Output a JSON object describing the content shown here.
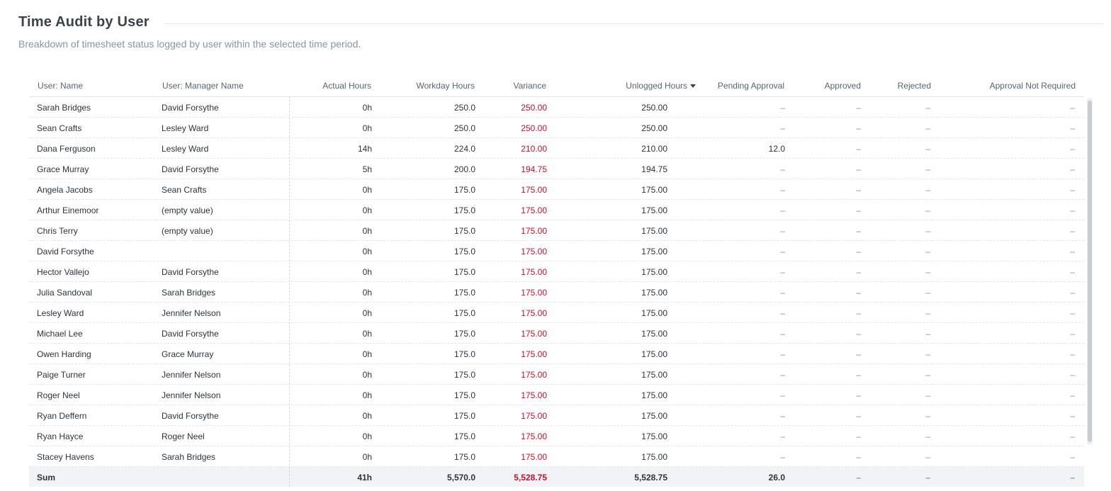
{
  "title": "Time Audit by User",
  "subtitle": "Breakdown of timesheet status logged by user within the selected time period.",
  "columns": {
    "name": "User: Name",
    "manager": "User: Manager Name",
    "actual": "Actual Hours",
    "workday": "Workday Hours",
    "variance": "Variance",
    "unlogged": "Unlogged Hours",
    "pending": "Pending Approval",
    "approved": "Approved",
    "rejected": "Rejected",
    "not_required": "Approval Not Required"
  },
  "sort": {
    "column": "unlogged",
    "direction": "desc",
    "icon": "sort-desc-icon"
  },
  "colors": {
    "variance": "#c8102e"
  },
  "rows": [
    {
      "name": "Sarah Bridges",
      "manager": "David Forsythe",
      "actual": "0h",
      "workday": "250.0",
      "variance": "250.00",
      "unlogged": "250.00",
      "pending": "–",
      "approved": "–",
      "rejected": "–",
      "not_required": "–"
    },
    {
      "name": "Sean Crafts",
      "manager": "Lesley Ward",
      "actual": "0h",
      "workday": "250.0",
      "variance": "250.00",
      "unlogged": "250.00",
      "pending": "–",
      "approved": "–",
      "rejected": "–",
      "not_required": "–"
    },
    {
      "name": "Dana Ferguson",
      "manager": "Lesley Ward",
      "actual": "14h",
      "workday": "224.0",
      "variance": "210.00",
      "unlogged": "210.00",
      "pending": "12.0",
      "approved": "–",
      "rejected": "–",
      "not_required": "–"
    },
    {
      "name": "Grace Murray",
      "manager": "David Forsythe",
      "actual": "5h",
      "workday": "200.0",
      "variance": "194.75",
      "unlogged": "194.75",
      "pending": "–",
      "approved": "–",
      "rejected": "–",
      "not_required": "–"
    },
    {
      "name": "Angela Jacobs",
      "manager": "Sean Crafts",
      "actual": "0h",
      "workday": "175.0",
      "variance": "175.00",
      "unlogged": "175.00",
      "pending": "–",
      "approved": "–",
      "rejected": "–",
      "not_required": "–"
    },
    {
      "name": "Arthur Einemoor",
      "manager": "(empty value)",
      "actual": "0h",
      "workday": "175.0",
      "variance": "175.00",
      "unlogged": "175.00",
      "pending": "–",
      "approved": "–",
      "rejected": "–",
      "not_required": "–"
    },
    {
      "name": "Chris Terry",
      "manager": "(empty value)",
      "actual": "0h",
      "workday": "175.0",
      "variance": "175.00",
      "unlogged": "175.00",
      "pending": "–",
      "approved": "–",
      "rejected": "–",
      "not_required": "–"
    },
    {
      "name": "David Forsythe",
      "manager": "",
      "actual": "0h",
      "workday": "175.0",
      "variance": "175.00",
      "unlogged": "175.00",
      "pending": "–",
      "approved": "–",
      "rejected": "–",
      "not_required": "–"
    },
    {
      "name": "Hector Vallejo",
      "manager": "David Forsythe",
      "actual": "0h",
      "workday": "175.0",
      "variance": "175.00",
      "unlogged": "175.00",
      "pending": "–",
      "approved": "–",
      "rejected": "–",
      "not_required": "–"
    },
    {
      "name": "Julia Sandoval",
      "manager": "Sarah Bridges",
      "actual": "0h",
      "workday": "175.0",
      "variance": "175.00",
      "unlogged": "175.00",
      "pending": "–",
      "approved": "–",
      "rejected": "–",
      "not_required": "–"
    },
    {
      "name": "Lesley Ward",
      "manager": "Jennifer Nelson",
      "actual": "0h",
      "workday": "175.0",
      "variance": "175.00",
      "unlogged": "175.00",
      "pending": "–",
      "approved": "–",
      "rejected": "–",
      "not_required": "–"
    },
    {
      "name": "Michael Lee",
      "manager": "David Forsythe",
      "actual": "0h",
      "workday": "175.0",
      "variance": "175.00",
      "unlogged": "175.00",
      "pending": "–",
      "approved": "–",
      "rejected": "–",
      "not_required": "–"
    },
    {
      "name": "Owen Harding",
      "manager": "Grace Murray",
      "actual": "0h",
      "workday": "175.0",
      "variance": "175.00",
      "unlogged": "175.00",
      "pending": "–",
      "approved": "–",
      "rejected": "–",
      "not_required": "–"
    },
    {
      "name": "Paige Turner",
      "manager": "Jennifer Nelson",
      "actual": "0h",
      "workday": "175.0",
      "variance": "175.00",
      "unlogged": "175.00",
      "pending": "–",
      "approved": "–",
      "rejected": "–",
      "not_required": "–"
    },
    {
      "name": "Roger Neel",
      "manager": "Jennifer Nelson",
      "actual": "0h",
      "workday": "175.0",
      "variance": "175.00",
      "unlogged": "175.00",
      "pending": "–",
      "approved": "–",
      "rejected": "–",
      "not_required": "–"
    },
    {
      "name": "Ryan Deffern",
      "manager": "David Forsythe",
      "actual": "0h",
      "workday": "175.0",
      "variance": "175.00",
      "unlogged": "175.00",
      "pending": "–",
      "approved": "–",
      "rejected": "–",
      "not_required": "–"
    },
    {
      "name": "Ryan Hayce",
      "manager": "Roger Neel",
      "actual": "0h",
      "workday": "175.0",
      "variance": "175.00",
      "unlogged": "175.00",
      "pending": "–",
      "approved": "–",
      "rejected": "–",
      "not_required": "–"
    },
    {
      "name": "Stacey Havens",
      "manager": "Sarah Bridges",
      "actual": "0h",
      "workday": "175.0",
      "variance": "175.00",
      "unlogged": "175.00",
      "pending": "–",
      "approved": "–",
      "rejected": "–",
      "not_required": "–"
    }
  ],
  "sum": {
    "name": "Sum",
    "manager": "",
    "actual": "41h",
    "workday": "5,570.0",
    "variance": "5,528.75",
    "unlogged": "5,528.75",
    "pending": "26.0",
    "approved": "–",
    "rejected": "–",
    "not_required": "–"
  }
}
